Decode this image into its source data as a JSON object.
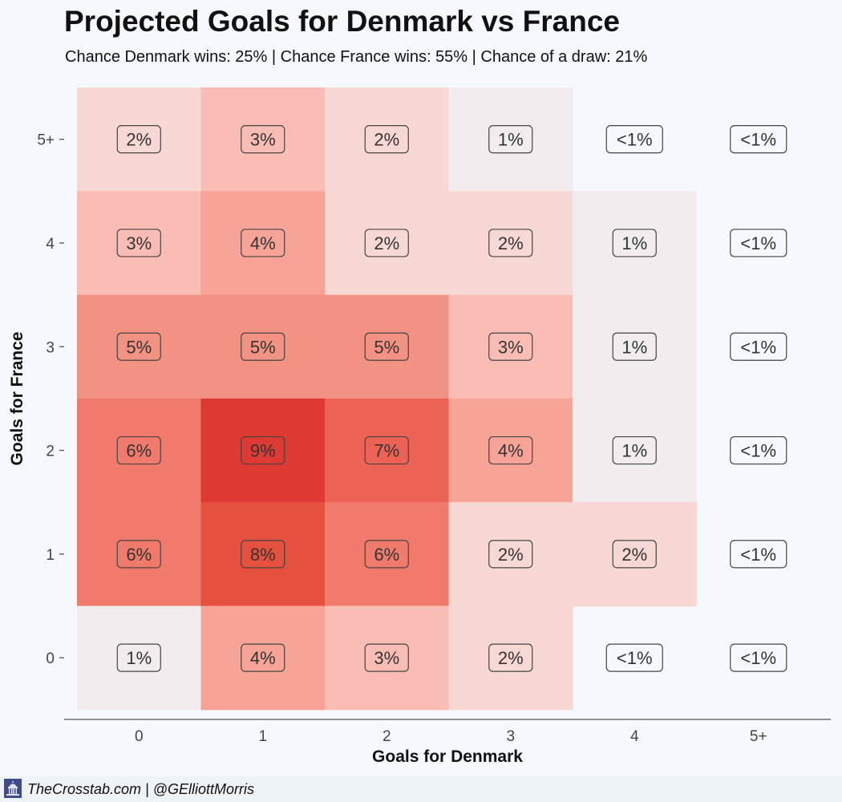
{
  "title": "Projected Goals for Denmark vs France",
  "subtitle": "Chance Denmark wins: 25% | Chance France wins: 55% | Chance of a draw: 21%",
  "footer": {
    "credit": "TheCrosstab.com | @GElliottMorris",
    "icon": "capitol-icon"
  },
  "colors": {
    "background": "#f5f9fd",
    "low": "#f2ecef",
    "high": "#de3a33"
  },
  "chart_data": {
    "type": "heatmap",
    "title": "Projected Goals for Denmark vs France",
    "subtitle": "Chance Denmark wins: 25% | Chance France wins: 55% | Chance of a draw: 21%",
    "xlabel": "Goals for Denmark",
    "ylabel": "Goals for France",
    "x_categories": [
      "0",
      "1",
      "2",
      "3",
      "4",
      "5+"
    ],
    "y_categories": [
      "0",
      "1",
      "2",
      "3",
      "4",
      "5+"
    ],
    "cells": [
      {
        "x": "0",
        "y": "5+",
        "label": "2%",
        "value": 2
      },
      {
        "x": "1",
        "y": "5+",
        "label": "3%",
        "value": 3
      },
      {
        "x": "2",
        "y": "5+",
        "label": "2%",
        "value": 2
      },
      {
        "x": "3",
        "y": "5+",
        "label": "1%",
        "value": 1
      },
      {
        "x": "4",
        "y": "5+",
        "label": "<1%",
        "value": 0
      },
      {
        "x": "5+",
        "y": "5+",
        "label": "<1%",
        "value": 0
      },
      {
        "x": "0",
        "y": "4",
        "label": "3%",
        "value": 3
      },
      {
        "x": "1",
        "y": "4",
        "label": "4%",
        "value": 4
      },
      {
        "x": "2",
        "y": "4",
        "label": "2%",
        "value": 2
      },
      {
        "x": "3",
        "y": "4",
        "label": "2%",
        "value": 2
      },
      {
        "x": "4",
        "y": "4",
        "label": "1%",
        "value": 1
      },
      {
        "x": "5+",
        "y": "4",
        "label": "<1%",
        "value": 0
      },
      {
        "x": "0",
        "y": "3",
        "label": "5%",
        "value": 5
      },
      {
        "x": "1",
        "y": "3",
        "label": "5%",
        "value": 5
      },
      {
        "x": "2",
        "y": "3",
        "label": "5%",
        "value": 5
      },
      {
        "x": "3",
        "y": "3",
        "label": "3%",
        "value": 3
      },
      {
        "x": "4",
        "y": "3",
        "label": "1%",
        "value": 1
      },
      {
        "x": "5+",
        "y": "3",
        "label": "<1%",
        "value": 0
      },
      {
        "x": "0",
        "y": "2",
        "label": "6%",
        "value": 6
      },
      {
        "x": "1",
        "y": "2",
        "label": "9%",
        "value": 9
      },
      {
        "x": "2",
        "y": "2",
        "label": "7%",
        "value": 7
      },
      {
        "x": "3",
        "y": "2",
        "label": "4%",
        "value": 4
      },
      {
        "x": "4",
        "y": "2",
        "label": "1%",
        "value": 1
      },
      {
        "x": "5+",
        "y": "2",
        "label": "<1%",
        "value": 0
      },
      {
        "x": "0",
        "y": "1",
        "label": "6%",
        "value": 6
      },
      {
        "x": "1",
        "y": "1",
        "label": "8%",
        "value": 8
      },
      {
        "x": "2",
        "y": "1",
        "label": "6%",
        "value": 6
      },
      {
        "x": "3",
        "y": "1",
        "label": "2%",
        "value": 2
      },
      {
        "x": "4",
        "y": "1",
        "label": "2%",
        "value": 2
      },
      {
        "x": "5+",
        "y": "1",
        "label": "<1%",
        "value": 0
      },
      {
        "x": "0",
        "y": "0",
        "label": "1%",
        "value": 1
      },
      {
        "x": "1",
        "y": "0",
        "label": "4%",
        "value": 4
      },
      {
        "x": "2",
        "y": "0",
        "label": "3%",
        "value": 3
      },
      {
        "x": "3",
        "y": "0",
        "label": "2%",
        "value": 2
      },
      {
        "x": "4",
        "y": "0",
        "label": "<1%",
        "value": 0
      },
      {
        "x": "5+",
        "y": "0",
        "label": "<1%",
        "value": 0
      }
    ],
    "grid": false,
    "legend": "none"
  }
}
